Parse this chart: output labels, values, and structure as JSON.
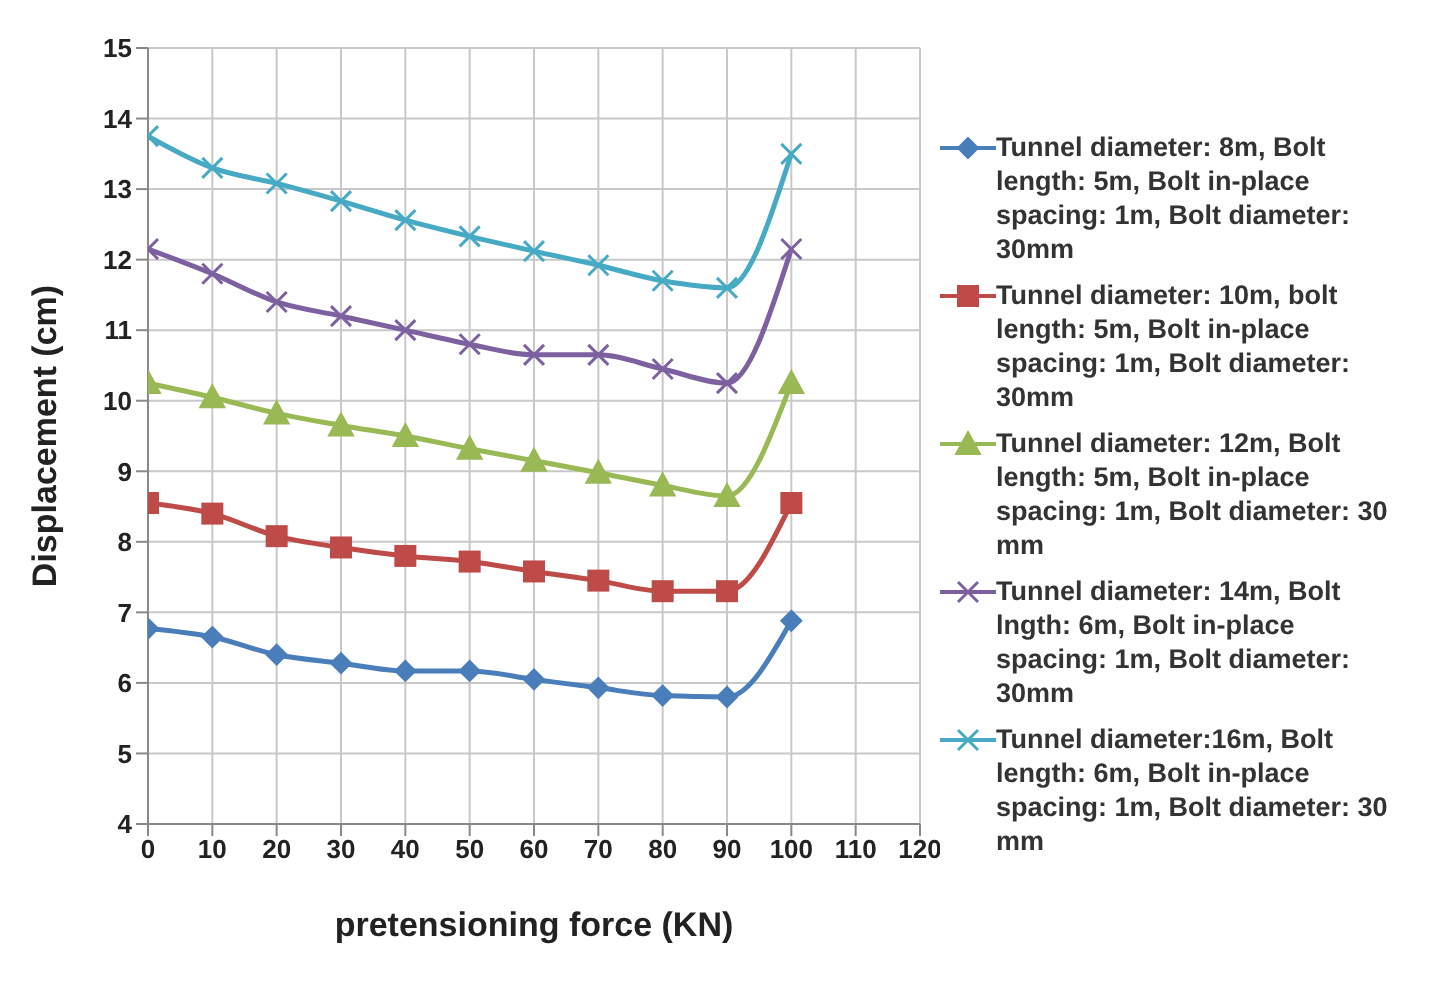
{
  "chart_data": {
    "type": "line",
    "xlabel": "pretensioning force (KN)",
    "ylabel": "Displacement (cm)",
    "x": [
      0,
      10,
      20,
      30,
      40,
      50,
      60,
      70,
      80,
      90,
      100
    ],
    "xlim": [
      0,
      120
    ],
    "xticks": [
      0,
      10,
      20,
      30,
      40,
      50,
      60,
      70,
      80,
      90,
      100,
      110,
      120
    ],
    "ylim": [
      4,
      15
    ],
    "yticks": [
      4,
      5,
      6,
      7,
      8,
      9,
      10,
      11,
      12,
      13,
      14,
      15
    ],
    "grid": true,
    "legend": "right",
    "line_style": "solid",
    "series": [
      {
        "name": "Tunnel diameter: 8m, Bolt length: 5m, Bolt in-place spacing: 1m, Bolt diameter: 30mm",
        "color": "#4a7ebb",
        "marker": "diamond",
        "values": [
          6.77,
          6.65,
          6.4,
          6.28,
          6.17,
          6.17,
          6.05,
          5.93,
          5.82,
          5.8,
          6.88
        ]
      },
      {
        "name": "Tunnel diameter: 10m, bolt length: 5m, Bolt in-place spacing: 1m, Bolt diameter: 30mm",
        "color": "#be4b48",
        "marker": "square",
        "values": [
          8.55,
          8.4,
          8.08,
          7.92,
          7.8,
          7.72,
          7.58,
          7.45,
          7.3,
          7.3,
          8.55
        ]
      },
      {
        "name": "Tunnel diameter: 12m, Bolt length: 5m, Bolt in-place spacing: 1m, Bolt diameter: 30 mm",
        "color": "#98b954",
        "marker": "triangle",
        "values": [
          10.25,
          10.05,
          9.82,
          9.65,
          9.5,
          9.32,
          9.15,
          8.98,
          8.8,
          8.65,
          10.25
        ]
      },
      {
        "name": "Tunnel diameter: 14m, Bolt lngth: 6m, Bolt in-place spacing: 1m, Bolt diameter: 30mm",
        "color": "#7d60a0",
        "marker": "cross",
        "values": [
          12.15,
          11.8,
          11.4,
          11.2,
          11.0,
          10.8,
          10.65,
          10.65,
          10.45,
          10.25,
          12.15
        ]
      },
      {
        "name": "Tunnel diameter:16m, Bolt length: 6m, Bolt in-place spacing: 1m, Bolt diameter: 30 mm",
        "color": "#46aac5",
        "marker": "cross",
        "values": [
          13.75,
          13.3,
          13.08,
          12.83,
          12.56,
          12.33,
          12.12,
          11.92,
          11.7,
          11.6,
          13.5
        ]
      }
    ]
  }
}
